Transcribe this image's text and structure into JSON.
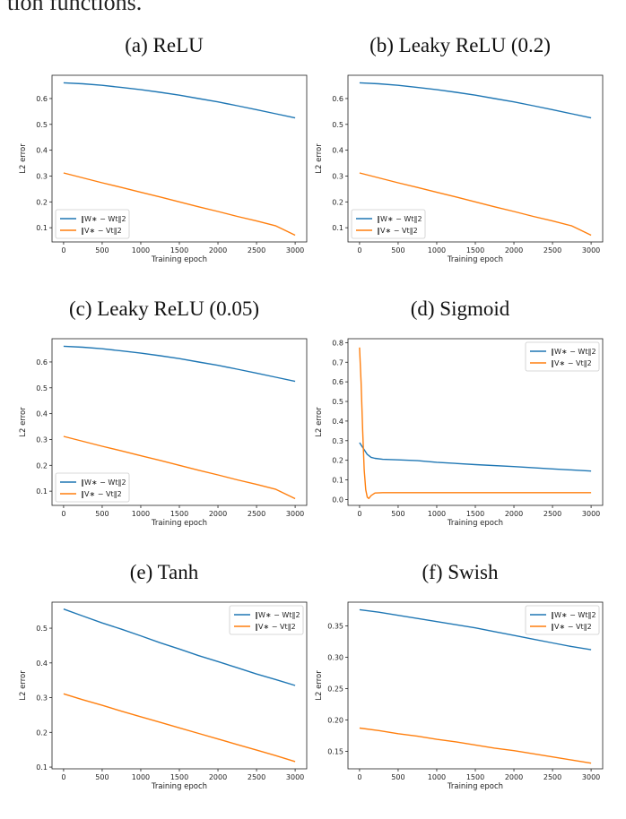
{
  "intro_text": "tion functions.",
  "colors": {
    "series_w": "#1f77b4",
    "series_v": "#ff7f0e"
  },
  "chart_data": [
    {
      "type": "line",
      "title": "(a) ReLU",
      "xlabel": "Training epoch",
      "ylabel": "L2 error",
      "xlim": [
        -150,
        3150
      ],
      "ylim": [
        0.045,
        0.69
      ],
      "xticks": [
        0,
        500,
        1000,
        1500,
        2000,
        2500,
        3000
      ],
      "yticks": [
        0.1,
        0.2,
        0.3,
        0.4,
        0.5,
        0.6
      ],
      "legend_position": "lower-left",
      "series": [
        {
          "name": "‖W∗ − Wt‖2",
          "x": [
            0,
            250,
            500,
            750,
            1000,
            1250,
            1500,
            1750,
            2000,
            2250,
            2500,
            2750,
            3000
          ],
          "y": [
            0.661,
            0.657,
            0.651,
            0.643,
            0.634,
            0.624,
            0.613,
            0.6,
            0.587,
            0.572,
            0.557,
            0.541,
            0.525
          ]
        },
        {
          "name": "‖V∗ − Vt‖2",
          "x": [
            0,
            250,
            500,
            750,
            1000,
            1250,
            1500,
            1750,
            2000,
            2250,
            2500,
            2750,
            3000
          ],
          "y": [
            0.312,
            0.293,
            0.274,
            0.256,
            0.237,
            0.219,
            0.2,
            0.181,
            0.163,
            0.144,
            0.126,
            0.107,
            0.071
          ]
        }
      ]
    },
    {
      "type": "line",
      "title": "(b) Leaky ReLU (0.2)",
      "xlabel": "Training epoch",
      "ylabel": "L2 error",
      "xlim": [
        -150,
        3150
      ],
      "ylim": [
        0.045,
        0.69
      ],
      "xticks": [
        0,
        500,
        1000,
        1500,
        2000,
        2500,
        3000
      ],
      "yticks": [
        0.1,
        0.2,
        0.3,
        0.4,
        0.5,
        0.6
      ],
      "legend_position": "lower-left",
      "series": [
        {
          "name": "‖W∗ − Wt‖2",
          "x": [
            0,
            250,
            500,
            750,
            1000,
            1250,
            1500,
            1750,
            2000,
            2250,
            2500,
            2750,
            3000
          ],
          "y": [
            0.661,
            0.657,
            0.651,
            0.643,
            0.634,
            0.624,
            0.613,
            0.6,
            0.587,
            0.572,
            0.557,
            0.541,
            0.525
          ]
        },
        {
          "name": "‖V∗ − Vt‖2",
          "x": [
            0,
            250,
            500,
            750,
            1000,
            1250,
            1500,
            1750,
            2000,
            2250,
            2500,
            2750,
            3000
          ],
          "y": [
            0.312,
            0.293,
            0.274,
            0.256,
            0.237,
            0.219,
            0.2,
            0.181,
            0.163,
            0.144,
            0.126,
            0.107,
            0.071
          ]
        }
      ]
    },
    {
      "type": "line",
      "title": "(c) Leaky ReLU (0.05)",
      "xlabel": "Training epoch",
      "ylabel": "L2 error",
      "xlim": [
        -150,
        3150
      ],
      "ylim": [
        0.045,
        0.69
      ],
      "xticks": [
        0,
        500,
        1000,
        1500,
        2000,
        2500,
        3000
      ],
      "yticks": [
        0.1,
        0.2,
        0.3,
        0.4,
        0.5,
        0.6
      ],
      "legend_position": "lower-left",
      "series": [
        {
          "name": "‖W∗ − Wt‖2",
          "x": [
            0,
            250,
            500,
            750,
            1000,
            1250,
            1500,
            1750,
            2000,
            2250,
            2500,
            2750,
            3000
          ],
          "y": [
            0.661,
            0.657,
            0.651,
            0.643,
            0.634,
            0.624,
            0.613,
            0.6,
            0.587,
            0.572,
            0.557,
            0.541,
            0.525
          ]
        },
        {
          "name": "‖V∗ − Vt‖2",
          "x": [
            0,
            250,
            500,
            750,
            1000,
            1250,
            1500,
            1750,
            2000,
            2250,
            2500,
            2750,
            3000
          ],
          "y": [
            0.312,
            0.293,
            0.274,
            0.256,
            0.237,
            0.219,
            0.2,
            0.181,
            0.163,
            0.144,
            0.126,
            0.107,
            0.071
          ]
        }
      ]
    },
    {
      "type": "line",
      "title": "(d) Sigmoid",
      "xlabel": "Training epoch",
      "ylabel": "L2 error",
      "xlim": [
        -150,
        3150
      ],
      "ylim": [
        -0.03,
        0.82
      ],
      "xticks": [
        0,
        500,
        1000,
        1500,
        2000,
        2500,
        3000
      ],
      "yticks": [
        0.0,
        0.1,
        0.2,
        0.3,
        0.4,
        0.5,
        0.6,
        0.7,
        0.8
      ],
      "legend_position": "upper-right",
      "series": [
        {
          "name": "‖W∗ − Wt‖2",
          "x": [
            0,
            50,
            100,
            150,
            200,
            300,
            500,
            750,
            1000,
            1500,
            2000,
            2500,
            3000
          ],
          "y": [
            0.29,
            0.26,
            0.23,
            0.215,
            0.21,
            0.205,
            0.202,
            0.198,
            0.19,
            0.178,
            0.168,
            0.156,
            0.145
          ]
        },
        {
          "name": "‖V∗ − Vt‖2",
          "x": [
            0,
            20,
            40,
            60,
            80,
            100,
            120,
            150,
            200,
            300,
            500,
            1000,
            2000,
            3000
          ],
          "y": [
            0.775,
            0.6,
            0.35,
            0.15,
            0.05,
            0.012,
            0.005,
            0.02,
            0.033,
            0.035,
            0.035,
            0.035,
            0.035,
            0.035
          ]
        }
      ]
    },
    {
      "type": "line",
      "title": "(e) Tanh",
      "xlabel": "Training epoch",
      "ylabel": "L2 error",
      "xlim": [
        -150,
        3150
      ],
      "ylim": [
        0.095,
        0.575
      ],
      "xticks": [
        0,
        500,
        1000,
        1500,
        2000,
        2500,
        3000
      ],
      "yticks": [
        0.1,
        0.2,
        0.3,
        0.4,
        0.5
      ],
      "legend_position": "upper-right",
      "series": [
        {
          "name": "‖W∗ − Wt‖2",
          "x": [
            0,
            250,
            500,
            750,
            1000,
            1250,
            1500,
            1750,
            2000,
            2250,
            2500,
            2750,
            3000
          ],
          "y": [
            0.555,
            0.535,
            0.515,
            0.497,
            0.478,
            0.458,
            0.44,
            0.421,
            0.404,
            0.386,
            0.368,
            0.352,
            0.335
          ]
        },
        {
          "name": "‖V∗ − Vt‖2",
          "x": [
            0,
            250,
            500,
            750,
            1000,
            1250,
            1500,
            1750,
            2000,
            2250,
            2500,
            2750,
            3000
          ],
          "y": [
            0.311,
            0.294,
            0.278,
            0.261,
            0.245,
            0.229,
            0.213,
            0.197,
            0.181,
            0.165,
            0.149,
            0.133,
            0.116
          ]
        }
      ]
    },
    {
      "type": "line",
      "title": "(f) Swish",
      "xlabel": "Training epoch",
      "ylabel": "L2 error",
      "xlim": [
        -150,
        3150
      ],
      "ylim": [
        0.122,
        0.388
      ],
      "xticks": [
        0,
        500,
        1000,
        1500,
        2000,
        2500,
        3000
      ],
      "yticks": [
        0.15,
        0.2,
        0.25,
        0.3,
        0.35
      ],
      "ytick_labels": [
        "0.15",
        "0.20",
        "0.25",
        "0.30",
        "0.35"
      ],
      "legend_position": "upper-right",
      "series": [
        {
          "name": "‖W∗ − Wt‖2",
          "x": [
            0,
            250,
            500,
            750,
            1000,
            1250,
            1500,
            1750,
            2000,
            2250,
            2500,
            2750,
            3000
          ],
          "y": [
            0.376,
            0.372,
            0.367,
            0.362,
            0.357,
            0.352,
            0.347,
            0.341,
            0.335,
            0.329,
            0.323,
            0.317,
            0.312
          ]
        },
        {
          "name": "‖V∗ − Vt‖2",
          "x": [
            0,
            250,
            500,
            750,
            1000,
            1250,
            1500,
            1750,
            2000,
            2250,
            2500,
            2750,
            3000
          ],
          "y": [
            0.187,
            0.183,
            0.178,
            0.174,
            0.169,
            0.165,
            0.16,
            0.155,
            0.151,
            0.146,
            0.141,
            0.136,
            0.131
          ]
        }
      ]
    }
  ]
}
